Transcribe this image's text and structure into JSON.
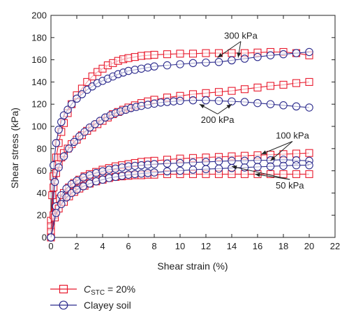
{
  "chart_data": {
    "type": "scatter",
    "xlabel": "Shear strain (%)",
    "ylabel": "Shear stress (kPa)",
    "xlim": [
      0,
      22
    ],
    "ylim": [
      0,
      200
    ],
    "xticks": [
      0,
      2,
      4,
      6,
      8,
      10,
      12,
      14,
      16,
      18,
      20,
      22
    ],
    "yticks": [
      0,
      20,
      40,
      60,
      80,
      100,
      120,
      140,
      160,
      180,
      200
    ],
    "grid": false,
    "legend_position": "bottom-left",
    "legend": {
      "stc": {
        "label_main": "C",
        "label_sub": "STC",
        "label_rest": " = 20%",
        "color": "#e8192c",
        "marker": "square"
      },
      "clay": {
        "label": "Clayey soil",
        "color": "#2b2a8c",
        "marker": "circle"
      }
    },
    "annotations": [
      {
        "text": "300 kPa",
        "x": 14.7,
        "y": 179,
        "arrows": [
          [
            12.9,
            162
          ],
          [
            14.5,
            162
          ]
        ]
      },
      {
        "text": "200 kPa",
        "x": 12.9,
        "y": 103,
        "arrows": [
          [
            11.5,
            120
          ],
          [
            14,
            120
          ]
        ]
      },
      {
        "text": "100 kPa",
        "x": 18.7,
        "y": 89,
        "arrows": [
          [
            16.3,
            75
          ],
          [
            17,
            69
          ]
        ]
      },
      {
        "text": "50 kPa",
        "x": 18.5,
        "y": 44,
        "arrows": [
          [
            14,
            64
          ],
          [
            15.8,
            57
          ]
        ]
      }
    ],
    "series": [
      {
        "group": "stc",
        "pressure": "300 kPa",
        "x": [
          0,
          0.1,
          0.2,
          0.4,
          0.6,
          0.8,
          1,
          1.3,
          1.6,
          2,
          2.4,
          2.8,
          3.2,
          3.6,
          4,
          4.4,
          4.8,
          5.2,
          5.6,
          6,
          6.5,
          7,
          7.5,
          8,
          9,
          10,
          11,
          12,
          13,
          14,
          15,
          16,
          17,
          18,
          19,
          20
        ],
        "y": [
          15,
          38,
          55,
          72,
          85,
          95,
          103,
          112,
          120,
          128,
          134,
          140,
          145,
          149,
          152,
          155,
          157,
          159,
          160.5,
          161.5,
          162.5,
          163.5,
          164,
          164.5,
          165,
          165.5,
          165.5,
          166,
          166,
          166,
          166,
          166.5,
          167,
          167,
          166,
          164
        ]
      },
      {
        "group": "clay",
        "pressure": "300 kPa",
        "x": [
          0,
          0.2,
          0.4,
          0.6,
          0.8,
          1,
          1.3,
          1.6,
          2,
          2.4,
          2.8,
          3.2,
          3.6,
          4,
          4.4,
          4.8,
          5.2,
          5.6,
          6,
          6.5,
          7,
          7.5,
          8,
          9,
          10,
          11,
          12,
          13,
          14,
          15,
          16,
          17,
          18,
          19,
          20
        ],
        "y": [
          0,
          65,
          85,
          97,
          104,
          110,
          115,
          120,
          125,
          129,
          133,
          136,
          139,
          141,
          143,
          145,
          147,
          148.5,
          150,
          151,
          152,
          153,
          154,
          155,
          156,
          157,
          157.5,
          158,
          159.5,
          161,
          162.5,
          164,
          165,
          166,
          167
        ]
      },
      {
        "group": "stc",
        "pressure": "200 kPa",
        "x": [
          0,
          0.2,
          0.4,
          0.6,
          0.8,
          1,
          1.3,
          1.6,
          2,
          2.4,
          2.8,
          3.2,
          3.6,
          4,
          4.4,
          4.8,
          5.2,
          5.6,
          6,
          6.5,
          7,
          7.5,
          8,
          9,
          10,
          11,
          12,
          13,
          14,
          15,
          16,
          17,
          18,
          19,
          20
        ],
        "y": [
          10,
          45,
          58,
          66,
          72,
          76,
          80,
          84,
          88,
          92,
          96,
          99,
          102,
          105,
          108,
          111,
          113,
          115,
          117,
          119,
          121,
          122.5,
          124,
          126,
          127.5,
          129,
          130,
          131,
          132,
          133.5,
          135,
          136.5,
          137.5,
          139,
          140
        ]
      },
      {
        "group": "clay",
        "pressure": "200 kPa",
        "x": [
          0,
          0.3,
          0.6,
          1,
          1.4,
          1.8,
          2.2,
          2.6,
          3,
          3.4,
          3.8,
          4.2,
          4.6,
          5,
          5.4,
          5.8,
          6.2,
          6.6,
          7,
          7.5,
          8,
          8.5,
          9,
          9.5,
          10,
          11,
          12,
          13,
          14,
          15,
          16,
          17,
          18,
          19,
          20
        ],
        "y": [
          0,
          50,
          63,
          73,
          80,
          86,
          91,
          95,
          99,
          102,
          105,
          108,
          110,
          112,
          113.5,
          115,
          116.5,
          117.5,
          118.5,
          119.5,
          120.5,
          121.5,
          122,
          122.5,
          123,
          123.5,
          123.5,
          123,
          122.5,
          122,
          121,
          120,
          119,
          118,
          117
        ]
      },
      {
        "group": "stc",
        "pressure": "100 kPa",
        "x": [
          0,
          0.2,
          0.4,
          0.7,
          1,
          1.4,
          1.8,
          2.2,
          2.6,
          3,
          3.5,
          4,
          4.5,
          5,
          5.5,
          6,
          6.5,
          7,
          7.5,
          8,
          9,
          10,
          11,
          12,
          13,
          14,
          15,
          16,
          17,
          18,
          19,
          20
        ],
        "y": [
          5,
          20,
          28,
          35,
          40,
          45,
          49,
          52,
          55,
          57,
          59,
          61,
          62.5,
          64,
          65,
          66,
          67,
          68,
          68.5,
          69,
          70,
          71,
          71.5,
          72,
          72.5,
          73,
          73.5,
          74,
          74.5,
          75,
          75.5,
          76
        ]
      },
      {
        "group": "clay",
        "pressure": "100 kPa",
        "x": [
          0,
          0.4,
          0.8,
          1.2,
          1.6,
          2,
          2.5,
          3,
          3.5,
          4,
          4.5,
          5,
          5.5,
          6,
          6.5,
          7,
          7.5,
          8,
          9,
          10,
          11,
          12,
          13,
          14,
          15,
          16,
          17,
          18,
          19,
          20
        ],
        "y": [
          0,
          28,
          38,
          44,
          48,
          51,
          54,
          56,
          58,
          59.5,
          61,
          62,
          63,
          64,
          64.5,
          65,
          65.5,
          66,
          66.5,
          67,
          67.5,
          68,
          68.5,
          69,
          69,
          69.5,
          69.5,
          70,
          69.5,
          69
        ]
      },
      {
        "group": "stc",
        "pressure": "50 kPa",
        "x": [
          0,
          0.3,
          0.6,
          1,
          1.4,
          1.8,
          2.2,
          2.6,
          3,
          3.5,
          4,
          4.5,
          5,
          5.5,
          6,
          6.5,
          7,
          7.5,
          8,
          9,
          10,
          11,
          12,
          13,
          14,
          15,
          16,
          17,
          18,
          19,
          20
        ],
        "y": [
          0,
          18,
          26,
          32,
          37,
          41,
          44,
          46.5,
          48.5,
          50.5,
          52,
          53.5,
          54.5,
          55,
          55.5,
          56,
          56,
          56.5,
          56.5,
          57,
          57,
          57,
          57,
          57,
          57,
          57,
          57,
          57,
          57,
          57,
          57
        ]
      },
      {
        "group": "clay",
        "pressure": "50 kPa",
        "x": [
          0,
          0.4,
          0.8,
          1.2,
          1.6,
          2,
          2.5,
          3,
          3.5,
          4,
          4.5,
          5,
          5.5,
          6,
          6.5,
          7,
          7.5,
          8,
          9,
          10,
          11,
          12,
          13,
          14,
          15,
          16,
          17,
          18,
          19,
          20
        ],
        "y": [
          0,
          22,
          30,
          36,
          40,
          43,
          46,
          48.5,
          50.5,
          52,
          53.5,
          54.5,
          55.5,
          56.5,
          57,
          57.5,
          58,
          58.5,
          59.5,
          60,
          61,
          61.5,
          62,
          62.5,
          63,
          63.5,
          64,
          64.5,
          65,
          65
        ]
      }
    ]
  }
}
